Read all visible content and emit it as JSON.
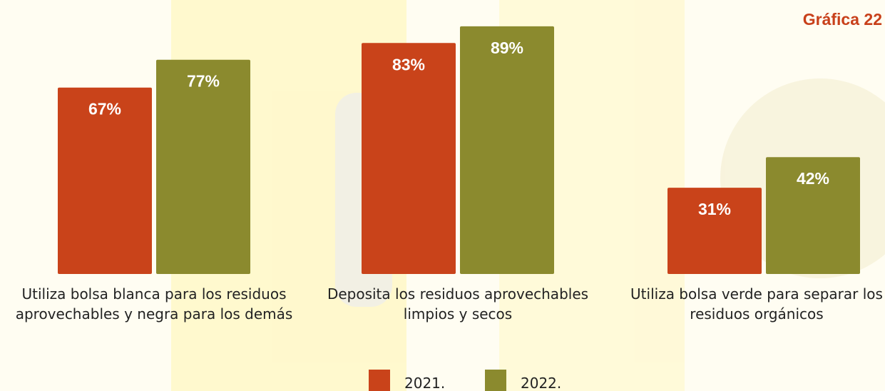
{
  "chart_data": {
    "type": "bar",
    "title": "Gráfica 22",
    "categories": [
      "Utiliza bolsa blanca para los residuos aprovechables y negra para los demás",
      "Deposita los residuos aprovechables limpios y secos",
      "Utiliza bolsa verde para separar los residuos orgánicos"
    ],
    "series": [
      {
        "name": "2021.",
        "color": "#c9431a",
        "values": [
          67,
          83,
          31
        ],
        "value_labels": [
          "67%",
          "83%",
          "31%"
        ]
      },
      {
        "name": "2022.",
        "color": "#8b8a2e",
        "values": [
          77,
          89,
          42
        ],
        "value_labels": [
          "77%",
          "89%",
          "42%"
        ]
      }
    ],
    "ylim": [
      0,
      100
    ],
    "legend": "bottom"
  }
}
